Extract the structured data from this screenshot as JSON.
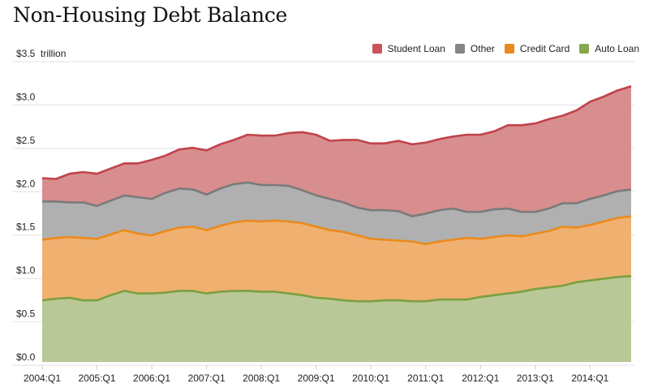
{
  "chart_data": {
    "type": "area",
    "stacked": true,
    "title": "Non-Housing Debt Balance",
    "ylabel": "trillion",
    "y_unit_label": "$3.5  trillion",
    "ylim": [
      0,
      3.5
    ],
    "yticks": [
      {
        "value": 0.0,
        "label": "$0.0"
      },
      {
        "value": 0.5,
        "label": "$0.5"
      },
      {
        "value": 1.0,
        "label": "$1.0"
      },
      {
        "value": 1.5,
        "label": "$1.5"
      },
      {
        "value": 2.0,
        "label": "$2.0"
      },
      {
        "value": 2.5,
        "label": "$2.5"
      },
      {
        "value": 3.0,
        "label": "$3.0"
      },
      {
        "value": 3.5,
        "label": "$3.5"
      }
    ],
    "xticks": [
      "2004:Q1",
      "2005:Q1",
      "2006:Q1",
      "2007:Q1",
      "2008:Q1",
      "2009:Q1",
      "2010:Q1",
      "2011:Q1",
      "2012:Q1",
      "2013:Q1",
      "2014:Q1"
    ],
    "x": [
      "2004:Q1",
      "2004:Q2",
      "2004:Q3",
      "2004:Q4",
      "2005:Q1",
      "2005:Q2",
      "2005:Q3",
      "2005:Q4",
      "2006:Q1",
      "2006:Q2",
      "2006:Q3",
      "2006:Q4",
      "2007:Q1",
      "2007:Q2",
      "2007:Q3",
      "2007:Q4",
      "2008:Q1",
      "2008:Q2",
      "2008:Q3",
      "2008:Q4",
      "2009:Q1",
      "2009:Q2",
      "2009:Q3",
      "2009:Q4",
      "2010:Q1",
      "2010:Q2",
      "2010:Q3",
      "2010:Q4",
      "2011:Q1",
      "2011:Q2",
      "2011:Q3",
      "2011:Q4",
      "2012:Q1",
      "2012:Q2",
      "2012:Q3",
      "2012:Q4",
      "2013:Q1",
      "2013:Q2",
      "2013:Q3",
      "2013:Q4",
      "2014:Q1",
      "2014:Q2",
      "2014:Q3",
      "2014:Q4"
    ],
    "grid": true,
    "legend_position": "top-right",
    "series": [
      {
        "name": "Auto Loan",
        "fill": "#b9c896",
        "stroke": "#7aa03f",
        "values": [
          0.71,
          0.73,
          0.74,
          0.71,
          0.71,
          0.77,
          0.82,
          0.79,
          0.79,
          0.8,
          0.82,
          0.82,
          0.79,
          0.81,
          0.82,
          0.82,
          0.81,
          0.81,
          0.79,
          0.77,
          0.74,
          0.73,
          0.71,
          0.7,
          0.7,
          0.71,
          0.71,
          0.7,
          0.7,
          0.72,
          0.72,
          0.72,
          0.75,
          0.77,
          0.79,
          0.81,
          0.84,
          0.86,
          0.88,
          0.92,
          0.94,
          0.96,
          0.98,
          0.99
        ]
      },
      {
        "name": "Credit Card",
        "fill": "#f0b070",
        "stroke": "#ea8a1c",
        "values": [
          0.7,
          0.7,
          0.7,
          0.72,
          0.71,
          0.7,
          0.7,
          0.69,
          0.67,
          0.71,
          0.73,
          0.74,
          0.73,
          0.76,
          0.79,
          0.81,
          0.81,
          0.82,
          0.83,
          0.83,
          0.82,
          0.79,
          0.79,
          0.76,
          0.72,
          0.7,
          0.69,
          0.69,
          0.66,
          0.67,
          0.69,
          0.71,
          0.67,
          0.67,
          0.67,
          0.64,
          0.64,
          0.65,
          0.68,
          0.63,
          0.64,
          0.66,
          0.68,
          0.69
        ]
      },
      {
        "name": "Other",
        "fill": "#b0b0b0",
        "stroke": "#7a7a7a",
        "values": [
          0.44,
          0.42,
          0.4,
          0.41,
          0.38,
          0.39,
          0.4,
          0.42,
          0.42,
          0.44,
          0.45,
          0.43,
          0.41,
          0.43,
          0.44,
          0.44,
          0.42,
          0.41,
          0.41,
          0.38,
          0.36,
          0.36,
          0.34,
          0.32,
          0.33,
          0.34,
          0.34,
          0.29,
          0.35,
          0.36,
          0.36,
          0.3,
          0.31,
          0.32,
          0.31,
          0.28,
          0.25,
          0.26,
          0.27,
          0.28,
          0.3,
          0.3,
          0.31,
          0.31
        ]
      },
      {
        "name": "Student Loan",
        "fill": "#d88e8e",
        "stroke": "#c0434b",
        "values": [
          0.27,
          0.26,
          0.33,
          0.35,
          0.37,
          0.37,
          0.37,
          0.39,
          0.45,
          0.43,
          0.45,
          0.48,
          0.51,
          0.51,
          0.51,
          0.55,
          0.57,
          0.57,
          0.61,
          0.67,
          0.7,
          0.67,
          0.72,
          0.78,
          0.77,
          0.77,
          0.81,
          0.83,
          0.82,
          0.82,
          0.83,
          0.89,
          0.89,
          0.9,
          0.96,
          1.0,
          1.02,
          1.03,
          1.01,
          1.07,
          1.12,
          1.14,
          1.16,
          1.19
        ]
      }
    ]
  },
  "legend": [
    {
      "label": "Student Loan",
      "color": "#c9545a"
    },
    {
      "label": "Other",
      "color": "#858585"
    },
    {
      "label": "Credit Card",
      "color": "#ea8a1c"
    },
    {
      "label": "Auto Loan",
      "color": "#86a84d"
    }
  ]
}
